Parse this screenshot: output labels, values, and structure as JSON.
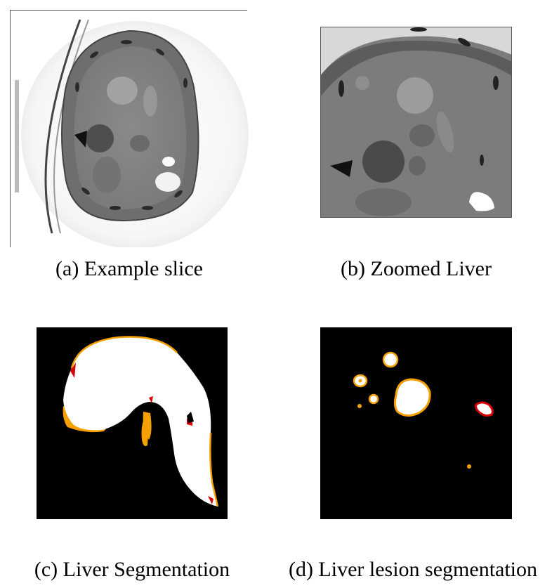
{
  "figure": {
    "panels": [
      {
        "id": "a",
        "caption": "(a) Example slice"
      },
      {
        "id": "b",
        "caption": "(b) Zoomed Liver"
      },
      {
        "id": "c",
        "caption": "(c) Liver Segmentation"
      },
      {
        "id": "d",
        "caption": "(d) Liver lesion segmentation"
      }
    ],
    "colors": {
      "background": "#ffffff",
      "mask_background": "#000000",
      "segmentation_fill": "#ffffff",
      "overlap_orange": "#f5a000",
      "error_red": "#d80000"
    }
  }
}
